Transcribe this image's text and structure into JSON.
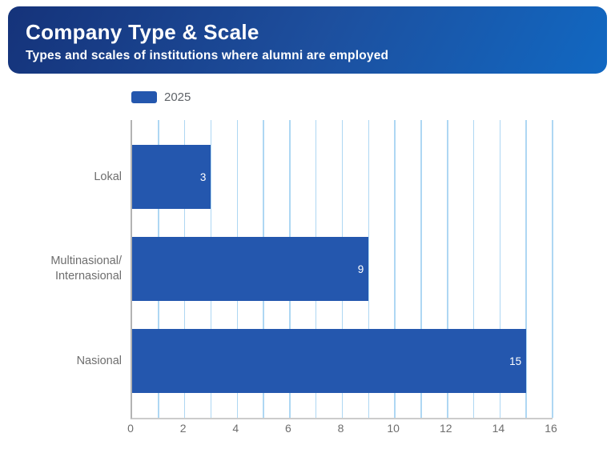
{
  "header": {
    "title": "Company Type & Scale",
    "subtitle": "Types and scales of institutions where alumni are employed"
  },
  "legend": {
    "label": "2025",
    "position": "top-left"
  },
  "colors": {
    "bar": "#2457ae",
    "header_gradient_start": "#15337a",
    "header_gradient_end": "#1168c2",
    "gridline": "#aed7f3",
    "y_axis_line": "#b3b3b3",
    "x_axis_line": "#cccccc",
    "category_text": "#6e6e6e",
    "tick_text": "#6e6e6e",
    "value_text": "#ffffff",
    "header_text": "#ffffff"
  },
  "chart_data": {
    "type": "bar",
    "orientation": "horizontal",
    "title": "Company Type & Scale",
    "subtitle": "Types and scales of institutions where alumni are employed",
    "categories": [
      "Lokal",
      "Multinasional/Internasional",
      "Nasional"
    ],
    "category_display_lines": [
      [
        "Lokal"
      ],
      [
        "Multinasional/",
        "Internasional"
      ],
      [
        "Nasional"
      ]
    ],
    "series": [
      {
        "name": "2025",
        "values": [
          3,
          9,
          15
        ]
      }
    ],
    "value_labels": [
      "3",
      "9",
      "15"
    ],
    "xlabel": "",
    "ylabel": "",
    "xlim": [
      0,
      16
    ],
    "xticks": [
      0,
      2,
      4,
      6,
      8,
      10,
      12,
      14,
      16
    ],
    "minor_grid_every": 1,
    "grid": "vertical",
    "legend_position": "top-left"
  }
}
